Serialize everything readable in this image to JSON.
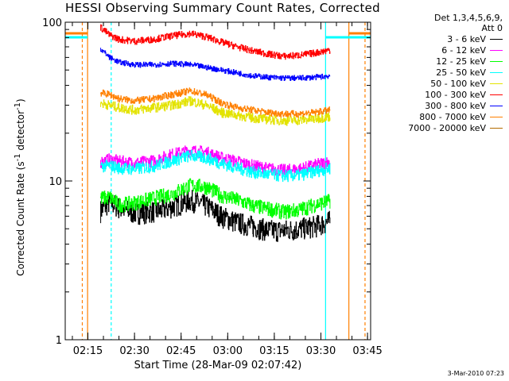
{
  "chart_data": {
    "type": "line",
    "title": "HESSI Observing Summary Count Rates, Corrected",
    "ylabel_parts": [
      "Corrected Count Rate (s",
      "-1",
      " detector",
      "-1",
      ")"
    ],
    "xlabel": "Start Time (28-Mar-09 02:07:42)",
    "timestamp": "3-Mar-2010 07:23",
    "y_scale": "log",
    "ylim": [
      1,
      100
    ],
    "y_tick_labels": [
      "1",
      "10",
      "100"
    ],
    "xlim_minutes": [
      7.7,
      106.0
    ],
    "x_ticks": [
      {
        "label": "02:15",
        "min": 15
      },
      {
        "label": "02:30",
        "min": 30
      },
      {
        "label": "02:45",
        "min": 45
      },
      {
        "label": "03:00",
        "min": 60
      },
      {
        "label": "03:15",
        "min": 75
      },
      {
        "label": "03:30",
        "min": 90
      },
      {
        "label": "03:45",
        "min": 105
      }
    ],
    "legend_header": [
      "Det 1,3,4,5,6,9,",
      "Att 0"
    ],
    "legend_placement": "right",
    "series": [
      {
        "name": "3 - 6 keV",
        "color": "#000000",
        "x": [
          19,
          22,
          25,
          30,
          38,
          43,
          48,
          53,
          58,
          63,
          68,
          73,
          78,
          83,
          88,
          93
        ],
        "y": [
          6.5,
          7.4,
          6.8,
          6.3,
          6.5,
          7.0,
          7.6,
          7.0,
          6.0,
          5.5,
          5.2,
          4.9,
          4.9,
          5.0,
          5.2,
          5.6
        ]
      },
      {
        "name": "6 - 12 keV",
        "color": "#ff00ff",
        "x": [
          19,
          22,
          25,
          30,
          36,
          42,
          48,
          53,
          58,
          63,
          68,
          73,
          78,
          83,
          88,
          93
        ],
        "y": [
          13.2,
          13.7,
          13.3,
          13.0,
          13.4,
          14.7,
          15.6,
          15.2,
          14.0,
          13.3,
          12.5,
          12.0,
          11.7,
          11.9,
          12.6,
          13.3
        ]
      },
      {
        "name": "12 - 25 keV",
        "color": "#00ff00",
        "x": [
          19,
          22,
          25,
          30,
          36,
          42,
          48,
          53,
          58,
          63,
          68,
          73,
          78,
          83,
          88,
          93
        ],
        "y": [
          7.8,
          7.9,
          7.1,
          7.3,
          7.8,
          8.3,
          9.4,
          9.2,
          8.1,
          7.6,
          7.0,
          6.7,
          6.4,
          6.6,
          7.1,
          7.5
        ]
      },
      {
        "name": "25 - 50 keV",
        "color": "#00ffff",
        "x": [
          19,
          22,
          25,
          30,
          36,
          42,
          48,
          53,
          58,
          63,
          68,
          73,
          78,
          83,
          88,
          93
        ],
        "y": [
          12.4,
          12.5,
          12.1,
          11.9,
          12.4,
          13.4,
          14.5,
          14.0,
          12.9,
          12.1,
          11.4,
          11.0,
          10.8,
          10.9,
          11.5,
          12.1
        ]
      },
      {
        "name": "50 - 100 keV",
        "color": "#e3e300",
        "x": [
          19,
          22,
          25,
          30,
          36,
          42,
          48,
          53,
          58,
          63,
          68,
          73,
          78,
          83,
          88,
          93
        ],
        "y": [
          31,
          30,
          29,
          28,
          29,
          30,
          32,
          30,
          27,
          26,
          25,
          24.5,
          24,
          24.2,
          24.7,
          25.5
        ]
      },
      {
        "name": "100 - 300 keV",
        "color": "#ff0000",
        "x": [
          19,
          22,
          25,
          30,
          36,
          42,
          48,
          53,
          58,
          63,
          68,
          73,
          78,
          83,
          88,
          93
        ],
        "y": [
          93,
          83,
          78,
          76,
          78,
          82,
          85,
          81,
          75,
          70,
          66,
          63,
          61,
          62,
          64,
          67
        ]
      },
      {
        "name": "300 - 800 keV",
        "color": "#0000ff",
        "x": [
          19,
          22,
          25,
          30,
          36,
          42,
          48,
          53,
          58,
          63,
          68,
          73,
          78,
          83,
          88,
          93
        ],
        "y": [
          68,
          60,
          56,
          54,
          54,
          55,
          54,
          52,
          50,
          48,
          46,
          45,
          44.5,
          44.5,
          45,
          46
        ]
      },
      {
        "name": "800 - 7000 keV",
        "color": "#ff8000",
        "x": [
          19,
          22,
          25,
          30,
          36,
          42,
          48,
          53,
          58,
          63,
          68,
          73,
          78,
          83,
          88,
          93
        ],
        "y": [
          36,
          35,
          33,
          32,
          33,
          35,
          37,
          35,
          31,
          29,
          28,
          27,
          26.5,
          26.5,
          27,
          28
        ]
      },
      {
        "name": "7000 - 20000 keV",
        "color": "#b36b00",
        "x": [],
        "y": []
      }
    ]
  }
}
